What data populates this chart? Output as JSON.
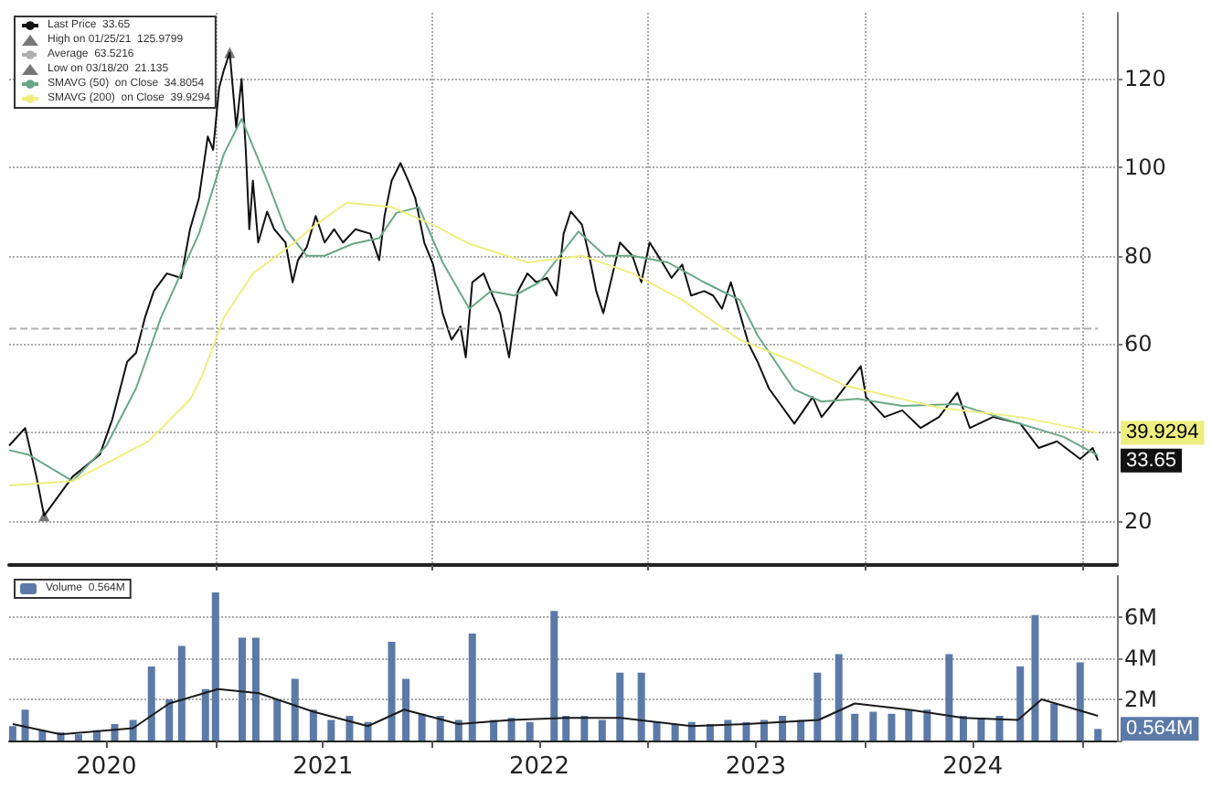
{
  "chart_data": [
    {
      "type": "line",
      "xlim": [
        "2020-01-19",
        "2025-03-01"
      ],
      "xticks": [
        {
          "value": "2021-01-01",
          "label": null
        },
        {
          "value": "2022-01-01",
          "label": null
        },
        {
          "value": "2023-01-01",
          "label": null
        },
        {
          "value": "2024-01-01",
          "label": null
        },
        {
          "value": "2025-01-01",
          "label": null
        }
      ],
      "ylim": [
        10,
        135
      ],
      "yticks": [
        20,
        {
          "value": 40,
          "label": null
        },
        60,
        80,
        100,
        120
      ],
      "tick_labels": "y",
      "grid": true,
      "legend": "top left",
      "marker": "none",
      "line_style": "solid",
      "series": [
        {
          "name": "Last Price  33.65",
          "color": "#111111",
          "x": [
            "2020-01-19",
            "2020-02-15",
            "2020-03-05",
            "2020-03-18",
            "2020-05-05",
            "2020-06-20",
            "2020-07-11",
            "2020-08-05",
            "2020-08-20",
            "2020-09-04",
            "2020-09-19",
            "2020-10-11",
            "2020-11-04",
            "2020-11-19",
            "2020-12-04",
            "2020-12-19",
            "2020-12-28",
            "2021-01-07",
            "2021-01-15",
            "2021-01-25",
            "2021-02-05",
            "2021-02-14",
            "2021-02-21",
            "2021-02-27",
            "2021-03-05",
            "2021-03-14",
            "2021-03-29",
            "2021-04-10",
            "2021-04-29",
            "2021-05-11",
            "2021-05-20",
            "2021-06-04",
            "2021-06-19",
            "2021-07-04",
            "2021-07-20",
            "2021-08-04",
            "2021-08-25",
            "2021-09-19",
            "2021-10-04",
            "2021-10-13",
            "2021-10-25",
            "2021-11-09",
            "2021-11-22",
            "2021-12-04",
            "2021-12-19",
            "2022-01-03",
            "2022-01-19",
            "2022-02-03",
            "2022-02-18",
            "2022-02-27",
            "2022-03-10",
            "2022-03-29",
            "2022-04-10",
            "2022-04-26",
            "2022-05-11",
            "2022-05-26",
            "2022-06-11",
            "2022-06-26",
            "2022-07-14",
            "2022-07-30",
            "2022-08-11",
            "2022-08-23",
            "2022-09-11",
            "2022-09-23",
            "2022-10-05",
            "2022-10-17",
            "2022-11-14",
            "2022-12-05",
            "2022-12-20",
            "2023-01-03",
            "2023-01-22",
            "2023-02-09",
            "2023-02-27",
            "2023-03-14",
            "2023-04-05",
            "2023-04-20",
            "2023-05-05",
            "2023-05-20",
            "2023-06-04",
            "2023-06-19",
            "2023-07-04",
            "2023-07-23",
            "2023-09-04",
            "2023-10-05",
            "2023-10-20",
            "2023-11-04",
            "2023-12-25",
            "2024-01-03",
            "2024-02-03",
            "2024-03-04",
            "2024-04-04",
            "2024-05-05",
            "2024-06-05",
            "2024-06-26",
            "2024-08-04",
            "2024-09-19",
            "2024-10-20",
            "2024-11-20",
            "2024-12-29",
            "2025-01-19",
            "2025-01-28"
          ],
          "values": [
            37,
            41,
            30,
            21.135,
            30,
            35,
            43,
            56,
            58,
            66,
            72,
            76,
            75,
            86,
            93,
            107,
            104,
            118,
            122,
            125.9799,
            109,
            120,
            104,
            86,
            97,
            83,
            90,
            86,
            83,
            74,
            79,
            82,
            89,
            83,
            86,
            83,
            86,
            85,
            79,
            89,
            97,
            101,
            97,
            93,
            83,
            78,
            67,
            61,
            64,
            57,
            74,
            76,
            72,
            67,
            57,
            72,
            76,
            74,
            75,
            71,
            85,
            90,
            87,
            80,
            72,
            67,
            83,
            80,
            74,
            83,
            79,
            75,
            78,
            71,
            72,
            71,
            68,
            74,
            67,
            60,
            56,
            50,
            42,
            48,
            43.5,
            46,
            55,
            48,
            43.5,
            45,
            41,
            43.5,
            49,
            41,
            43.5,
            42,
            36.5,
            38,
            34,
            36.5,
            33.65
          ]
        },
        {
          "name": "High on 01/25/21  125.9799",
          "type": "scatter",
          "marker": "triangle",
          "color": "#555555",
          "x": [
            "2021-01-25"
          ],
          "values": [
            125.9799
          ]
        },
        {
          "name": "Average  63.5216",
          "color": "#b0b0b0",
          "line_style": "dashed",
          "x": [
            "2020-01-19",
            "2025-01-28"
          ],
          "values": [
            63.5216,
            63.5216
          ]
        },
        {
          "name": "Low on 03/18/20  21.135",
          "type": "scatter",
          "marker": "triangle",
          "color": "#555555",
          "x": [
            "2020-03-18"
          ],
          "values": [
            21.135
          ]
        },
        {
          "name": "SMAVG (50)  on Close  34.8054",
          "color": "#6aa888",
          "x": [
            "2020-01-19",
            "2020-02-20",
            "2020-05-05",
            "2020-07-01",
            "2020-08-20",
            "2020-10-01",
            "2020-12-04",
            "2021-01-15",
            "2021-02-14",
            "2021-03-29",
            "2021-04-29",
            "2021-06-04",
            "2021-07-04",
            "2021-08-20",
            "2021-10-04",
            "2021-11-02",
            "2021-12-10",
            "2022-01-19",
            "2022-03-05",
            "2022-04-10",
            "2022-05-20",
            "2022-07-01",
            "2022-09-05",
            "2022-10-20",
            "2022-12-05",
            "2023-02-03",
            "2023-04-05",
            "2023-06-04",
            "2023-07-04",
            "2023-09-04",
            "2023-10-20",
            "2023-12-20",
            "2024-03-04",
            "2024-06-05",
            "2024-09-01",
            "2024-12-01",
            "2025-01-28"
          ],
          "values": [
            36,
            35,
            29,
            37,
            50,
            66,
            85,
            103,
            111,
            97,
            86,
            80,
            80,
            82.7,
            84,
            89.7,
            91,
            78.5,
            68,
            72,
            71,
            74,
            85.5,
            80,
            80,
            78.5,
            74,
            70,
            62,
            49.7,
            47,
            47.6,
            46,
            46.4,
            42.7,
            39,
            34.8054
          ]
        },
        {
          "name": "SMAVG (200)  on Close  39.9294",
          "color": "#eeee80",
          "x": [
            "2020-01-19",
            "2020-05-05",
            "2020-09-10",
            "2020-11-20",
            "2020-12-10",
            "2021-01-15",
            "2021-03-05",
            "2021-05-11",
            "2021-06-19",
            "2021-08-10",
            "2021-10-25",
            "2022-01-03",
            "2022-03-05",
            "2022-06-11",
            "2022-09-11",
            "2022-12-05",
            "2023-02-27",
            "2023-06-04",
            "2023-09-04",
            "2023-12-01",
            "2024-05-05",
            "2024-09-19",
            "2025-01-28"
          ],
          "values": [
            28,
            29,
            38,
            47.6,
            53,
            66,
            76,
            82.7,
            87,
            92,
            91,
            87,
            82.7,
            78.5,
            80,
            76,
            70,
            61,
            56,
            50.5,
            45.6,
            43.5,
            39.9294
          ]
        }
      ],
      "annotations": [
        {
          "text": "39.9294",
          "x": "2025-01-28",
          "y": 39.9294
        },
        {
          "text": "33.65",
          "x": "2025-01-28",
          "y": 33.65
        }
      ]
    },
    {
      "type": "bar",
      "xlim": [
        "2020-01-19",
        "2025-03-01"
      ],
      "xticks": [
        {
          "value": "2020-07-01",
          "label": "2020"
        },
        {
          "value": "2021-01-01",
          "label": null
        },
        {
          "value": "2021-07-01",
          "label": "2021"
        },
        {
          "value": "2022-01-01",
          "label": null
        },
        {
          "value": "2022-07-01",
          "label": "2022"
        },
        {
          "value": "2023-01-01",
          "label": null
        },
        {
          "value": "2023-07-01",
          "label": "2023"
        },
        {
          "value": "2024-01-01",
          "label": null
        },
        {
          "value": "2024-07-01",
          "label": "2024"
        },
        {
          "value": "2025-01-01",
          "label": null
        }
      ],
      "ylim": [
        0,
        8
      ],
      "yticks": [
        {
          "value": 0,
          "label": null
        },
        {
          "value": 2,
          "label": "2M"
        },
        {
          "value": 4,
          "label": "4M"
        },
        {
          "value": 6,
          "label": "6M"
        }
      ],
      "grid": "y",
      "legend": "top left",
      "series": [
        {
          "name": "Volume  0.564M",
          "color": "#5b7aa8",
          "x": [
            "2020-01-25",
            "2020-02-15",
            "2020-03-15",
            "2020-04-15",
            "2020-05-15",
            "2020-06-15",
            "2020-07-15",
            "2020-08-15",
            "2020-09-15",
            "2020-10-15",
            "2020-11-05",
            "2020-12-15",
            "2021-01-01",
            "2021-02-15",
            "2021-03-10",
            "2021-04-15",
            "2021-05-15",
            "2021-06-15",
            "2021-07-15",
            "2021-08-15",
            "2021-09-15",
            "2021-10-25",
            "2021-11-18",
            "2021-12-15",
            "2022-01-15",
            "2022-02-15",
            "2022-03-10",
            "2022-04-15",
            "2022-05-15",
            "2022-06-15",
            "2022-07-26",
            "2022-08-15",
            "2022-09-15",
            "2022-10-15",
            "2022-11-14",
            "2022-12-20",
            "2023-01-15",
            "2023-02-15",
            "2023-03-15",
            "2023-04-15",
            "2023-05-15",
            "2023-06-15",
            "2023-07-15",
            "2023-08-15",
            "2023-09-15",
            "2023-10-13",
            "2023-11-18",
            "2023-12-15",
            "2024-01-15",
            "2024-02-15",
            "2024-03-15",
            "2024-04-15",
            "2024-05-22",
            "2024-06-15",
            "2024-07-15",
            "2024-08-15",
            "2024-09-19",
            "2024-10-14",
            "2024-11-15",
            "2024-12-29",
            "2025-01-28"
          ],
          "values": [
            0.7,
            1.5,
            0.5,
            0.4,
            0.3,
            0.5,
            0.8,
            1.0,
            3.6,
            2.0,
            4.6,
            2.5,
            7.2,
            5.0,
            5.0,
            2.0,
            3.0,
            1.5,
            1.0,
            1.2,
            0.9,
            4.8,
            3.0,
            1.3,
            1.2,
            1.0,
            5.2,
            1.0,
            1.1,
            0.9,
            6.3,
            1.2,
            1.2,
            1.0,
            3.3,
            3.3,
            0.9,
            0.8,
            0.9,
            0.8,
            1.0,
            0.9,
            1.0,
            1.2,
            1.0,
            3.3,
            4.2,
            1.3,
            1.4,
            1.3,
            1.5,
            1.5,
            4.2,
            1.2,
            1.1,
            1.2,
            3.6,
            6.1,
            1.8,
            3.8,
            0.564
          ]
        },
        {
          "type": "line",
          "color": "#1a1a1a",
          "x": [
            "2020-01-25",
            "2020-04-15",
            "2020-08-15",
            "2020-10-15",
            "2021-01-05",
            "2021-03-15",
            "2021-06-15",
            "2021-09-15",
            "2021-11-15",
            "2022-02-15",
            "2022-05-15",
            "2022-08-15",
            "2022-11-15",
            "2023-03-15",
            "2023-06-15",
            "2023-10-15",
            "2023-12-15",
            "2024-03-15",
            "2024-06-15",
            "2024-09-15",
            "2024-10-25",
            "2025-01-28"
          ],
          "values": [
            0.8,
            0.3,
            0.6,
            1.8,
            2.5,
            2.3,
            1.4,
            0.7,
            1.5,
            0.8,
            1.0,
            1.1,
            1.1,
            0.7,
            0.8,
            1.0,
            1.8,
            1.5,
            1.1,
            1.0,
            2.0,
            1.2
          ]
        }
      ],
      "annotations": [
        {
          "text": "0.564M",
          "x": "2025-01-28",
          "y": 0.564
        }
      ]
    }
  ]
}
